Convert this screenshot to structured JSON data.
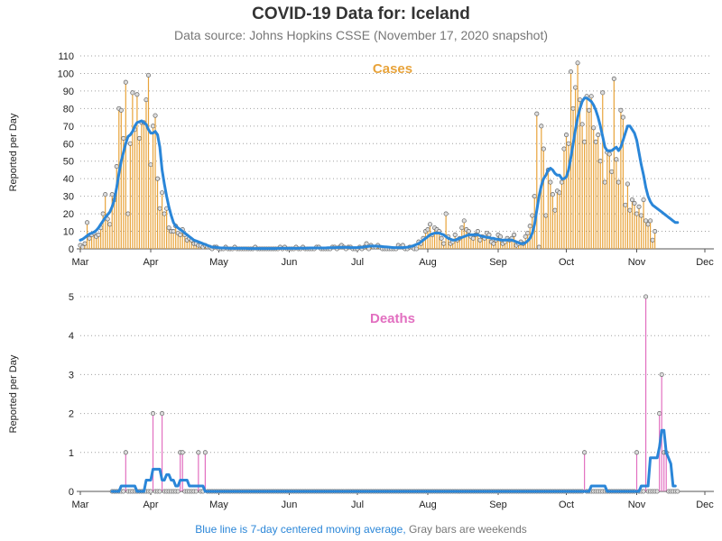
{
  "title": "COVID-19 Data for: Iceland",
  "subtitle": "Data source: Johns Hopkins CSSE (November 17, 2020 snapshot)",
  "footnote": {
    "part1": "Blue line is 7-day centered moving average,",
    "part2": "Gray bars are weekends"
  },
  "colors": {
    "cases": "#e8a33a",
    "deaths": "#e26fc0",
    "average": "#2a86d8",
    "grid": "#a0a0a0",
    "marker_fill": "#dddddd",
    "marker_stroke": "#666666"
  },
  "chart_data": [
    {
      "type": "bar",
      "title": "Cases",
      "ylabel": "Reported per Day",
      "ylim": [
        0,
        110
      ],
      "yticks": [
        0,
        10,
        20,
        30,
        40,
        50,
        60,
        70,
        80,
        90,
        100,
        110
      ],
      "xlim": [
        "2020-03-01",
        "2020-12-01"
      ],
      "month_labels": [
        "Mar",
        "Apr",
        "May",
        "Jun",
        "Jul",
        "Aug",
        "Sep",
        "Oct",
        "Nov",
        "Dec"
      ],
      "grid": "horizontal dotted",
      "values": [
        2,
        1,
        3,
        15,
        6,
        8,
        9,
        7,
        8,
        12,
        20,
        31,
        17,
        14,
        31,
        28,
        47,
        80,
        79,
        63,
        95,
        20,
        60,
        89,
        68,
        88,
        63,
        72,
        72,
        85,
        99,
        48,
        70,
        76,
        40,
        23,
        32,
        20,
        23,
        12,
        10,
        10,
        13,
        9,
        8,
        11,
        8,
        5,
        6,
        5,
        3,
        3,
        2,
        2,
        1,
        2,
        1,
        1,
        0,
        1,
        1,
        0,
        0,
        0,
        1,
        0,
        0,
        0,
        1,
        0,
        0,
        0,
        0,
        0,
        0,
        0,
        0,
        1,
        0,
        0,
        0,
        0,
        0,
        0,
        0,
        0,
        0,
        0,
        1,
        0,
        1,
        0,
        0,
        0,
        0,
        1,
        0,
        0,
        1,
        0,
        0,
        0,
        0,
        0,
        1,
        1,
        0,
        0,
        0,
        0,
        0,
        1,
        1,
        0,
        1,
        2,
        1,
        0,
        1,
        1,
        0,
        0,
        0,
        1,
        0,
        1,
        3,
        0,
        2,
        1,
        1,
        2,
        1,
        0,
        0,
        0,
        0,
        0,
        0,
        0,
        2,
        1,
        2,
        0,
        0,
        1,
        1,
        0,
        0,
        4,
        3,
        6,
        10,
        11,
        14,
        8,
        12,
        11,
        10,
        6,
        3,
        20,
        7,
        3,
        4,
        8,
        5,
        6,
        12,
        16,
        11,
        10,
        7,
        6,
        8,
        10,
        5,
        7,
        6,
        9,
        8,
        4,
        3,
        5,
        8,
        7,
        3,
        4,
        6,
        5,
        6,
        8,
        2,
        3,
        4,
        3,
        7,
        9,
        13,
        19,
        30,
        77,
        1,
        70,
        57,
        19,
        45,
        38,
        31,
        22,
        33,
        32,
        38,
        57,
        65,
        60,
        101,
        80,
        92,
        106,
        85,
        71,
        61,
        87,
        79,
        87,
        69,
        61,
        65,
        50,
        89,
        38,
        55,
        54,
        44,
        97,
        51,
        38,
        79,
        75,
        25,
        37,
        22,
        28,
        26,
        20,
        24,
        19,
        28,
        16,
        14,
        16,
        5,
        10
      ],
      "series": [
        {
          "name": "7-day centered moving average",
          "values": [
            5,
            5.5,
            6.5,
            7.5,
            8.5,
            9,
            9.5,
            10.5,
            12,
            14,
            16,
            18,
            19.5,
            21,
            24,
            28,
            35,
            43,
            50,
            55,
            60,
            64,
            65,
            67,
            70,
            72,
            72.5,
            73,
            72,
            71,
            68,
            66,
            66,
            67,
            65,
            58,
            45,
            37,
            30,
            24,
            19,
            15,
            13,
            12,
            11,
            10,
            9,
            8,
            7,
            6,
            5,
            4.5,
            4,
            3.5,
            3,
            2.5,
            2,
            1.5,
            1,
            1,
            0.8,
            0.6,
            0.5,
            0.5,
            0.5,
            0.4,
            0.3,
            0.3,
            0.3,
            0.3,
            0.3,
            0.3,
            0.3,
            0.3,
            0.2,
            0.2,
            0.2,
            0.2,
            0.2,
            0.2,
            0.2,
            0.2,
            0.2,
            0.2,
            0.2,
            0.2,
            0.2,
            0.3,
            0.3,
            0.3,
            0.3,
            0.3,
            0.3,
            0.3,
            0.3,
            0.3,
            0.3,
            0.4,
            0.4,
            0.4,
            0.4,
            0.5,
            0.5,
            0.5,
            0.5,
            0.5,
            0.5,
            0.5,
            0.5,
            0.6,
            0.6,
            0.6,
            0.7,
            0.7,
            0.8,
            0.8,
            0.8,
            0.8,
            0.8,
            0.7,
            0.7,
            0.7,
            0.7,
            0.8,
            0.9,
            1.1,
            1.3,
            1.5,
            1.6,
            1.6,
            1.6,
            1.5,
            1.4,
            1.3,
            1.2,
            1.1,
            1,
            0.8,
            0.7,
            0.7,
            0.7,
            0.7,
            0.7,
            0.8,
            1,
            1.2,
            1.5,
            2,
            2.5,
            3,
            4,
            5,
            6,
            7,
            8,
            8.5,
            9,
            9,
            9,
            8.5,
            8,
            7,
            6,
            5.5,
            5,
            5,
            5.5,
            6,
            6.5,
            7,
            7.5,
            8,
            8,
            8,
            8,
            8,
            7.5,
            7,
            7,
            6.5,
            6.5,
            6,
            6,
            5.5,
            5.5,
            5,
            5,
            5,
            5,
            5,
            5,
            4.5,
            4,
            3.5,
            3,
            3,
            3.5,
            4.5,
            6,
            9,
            14,
            22,
            30,
            36,
            40,
            42,
            45,
            46,
            45,
            43,
            42,
            42,
            40,
            40,
            41,
            45,
            52,
            60,
            68,
            75,
            80,
            84,
            86,
            86,
            85,
            84,
            82,
            79,
            75,
            70,
            64,
            58,
            56,
            56,
            56,
            57,
            58,
            56,
            58,
            62,
            66,
            70,
            70,
            68,
            66,
            62,
            55,
            48,
            42,
            35,
            30,
            27,
            25,
            24,
            23,
            22,
            21,
            20,
            19,
            18,
            17,
            16,
            15,
            15
          ]
        }
      ]
    },
    {
      "type": "bar",
      "title": "Deaths",
      "ylabel": "Reported per Day",
      "ylim": [
        0,
        5
      ],
      "yticks": [
        0,
        1,
        2,
        3,
        4,
        5
      ],
      "xlim": [
        "2020-03-01",
        "2020-12-01"
      ],
      "month_labels": [
        "Mar",
        "Apr",
        "May",
        "Jun",
        "Jul",
        "Aug",
        "Sep",
        "Oct",
        "Nov",
        "Dec"
      ],
      "grid": "horizontal dotted",
      "first_date": "2020-03-15",
      "values": [
        0,
        0,
        0,
        0,
        0,
        0,
        1,
        0,
        0,
        0,
        0,
        0,
        0,
        0,
        0,
        0,
        0,
        0,
        2,
        0,
        0,
        0,
        2,
        0,
        0,
        0,
        0,
        0,
        0,
        0,
        1,
        1,
        0,
        0,
        0,
        0,
        0,
        0,
        1,
        0,
        0,
        1,
        0,
        0,
        0,
        0,
        0,
        0,
        0,
        0,
        0,
        0,
        0,
        0,
        0,
        0,
        0,
        0,
        0,
        0,
        0,
        0,
        0,
        0,
        0,
        0,
        0,
        0,
        0,
        0,
        0,
        0,
        0,
        0,
        0,
        0,
        0,
        0,
        0,
        0,
        0,
        0,
        0,
        0,
        0,
        0,
        0,
        0,
        0,
        0,
        0,
        0,
        0,
        0,
        0,
        0,
        0,
        0,
        0,
        0,
        0,
        0,
        0,
        0,
        0,
        0,
        0,
        0,
        0,
        0,
        0,
        0,
        0,
        0,
        0,
        0,
        0,
        0,
        0,
        0,
        0,
        0,
        0,
        0,
        0,
        0,
        0,
        0,
        0,
        0,
        0,
        0,
        0,
        0,
        0,
        0,
        0,
        0,
        0,
        0,
        0,
        0,
        0,
        0,
        0,
        0,
        0,
        0,
        0,
        0,
        0,
        0,
        0,
        0,
        0,
        0,
        0,
        0,
        0,
        0,
        0,
        0,
        0,
        0,
        0,
        0,
        0,
        0,
        0,
        0,
        0,
        0,
        0,
        0,
        0,
        0,
        0,
        0,
        0,
        0,
        0,
        0,
        0,
        0,
        0,
        0,
        0,
        0,
        0,
        0,
        0,
        0,
        0,
        0,
        0,
        0,
        0,
        0,
        0,
        0,
        0,
        0,
        0,
        0,
        0,
        0,
        0,
        0,
        1,
        0,
        0,
        0,
        0,
        0,
        0,
        0,
        0,
        0,
        0,
        0,
        0,
        0,
        0,
        0,
        0,
        0,
        0,
        0,
        0,
        0,
        0,
        1,
        0,
        0,
        0,
        5,
        0,
        0,
        0,
        0,
        0,
        2,
        3,
        1,
        1,
        0,
        0,
        0,
        0,
        0
      ],
      "series": [
        {
          "name": "7-day centered moving average",
          "values": [
            0,
            0,
            0,
            0,
            0.14,
            0.14,
            0.14,
            0.14,
            0.14,
            0.14,
            0.14,
            0,
            0,
            0,
            0,
            0.29,
            0.29,
            0.29,
            0.57,
            0.57,
            0.57,
            0.57,
            0.29,
            0.29,
            0.43,
            0.43,
            0.29,
            0.29,
            0.14,
            0.14,
            0.29,
            0.29,
            0.29,
            0.29,
            0.14,
            0.14,
            0.14,
            0.14,
            0.14,
            0.14,
            0.14,
            0,
            0,
            0,
            0,
            0,
            0,
            0,
            0,
            0,
            0,
            0,
            0,
            0,
            0,
            0,
            0,
            0,
            0,
            0,
            0,
            0,
            0,
            0,
            0,
            0,
            0,
            0,
            0,
            0,
            0,
            0,
            0,
            0,
            0,
            0,
            0,
            0,
            0,
            0,
            0,
            0,
            0,
            0,
            0,
            0,
            0,
            0,
            0,
            0,
            0,
            0,
            0,
            0,
            0,
            0,
            0,
            0,
            0,
            0,
            0,
            0,
            0,
            0,
            0,
            0,
            0,
            0,
            0,
            0,
            0,
            0,
            0,
            0,
            0,
            0,
            0,
            0,
            0,
            0,
            0,
            0,
            0,
            0,
            0,
            0,
            0,
            0,
            0,
            0,
            0,
            0,
            0,
            0,
            0,
            0,
            0,
            0,
            0,
            0,
            0,
            0,
            0,
            0,
            0,
            0,
            0,
            0,
            0,
            0,
            0,
            0,
            0,
            0,
            0,
            0,
            0,
            0,
            0,
            0,
            0,
            0,
            0,
            0,
            0,
            0,
            0,
            0,
            0,
            0,
            0,
            0,
            0,
            0,
            0,
            0,
            0,
            0,
            0,
            0,
            0,
            0,
            0,
            0,
            0,
            0,
            0,
            0,
            0,
            0,
            0,
            0,
            0,
            0,
            0,
            0,
            0,
            0,
            0,
            0,
            0,
            0,
            0,
            0,
            0,
            0,
            0,
            0,
            0,
            0,
            0,
            0.14,
            0.14,
            0.14,
            0.14,
            0.14,
            0.14,
            0.14,
            0,
            0,
            0,
            0,
            0,
            0,
            0,
            0,
            0,
            0,
            0,
            0,
            0,
            0,
            0,
            0.14,
            0.14,
            0.14,
            0.14,
            0.86,
            0.86,
            0.86,
            0.86,
            1.14,
            1.57,
            1.57,
            1.0,
            0.86,
            0.71,
            0.14,
            0.14
          ]
        }
      ]
    }
  ]
}
